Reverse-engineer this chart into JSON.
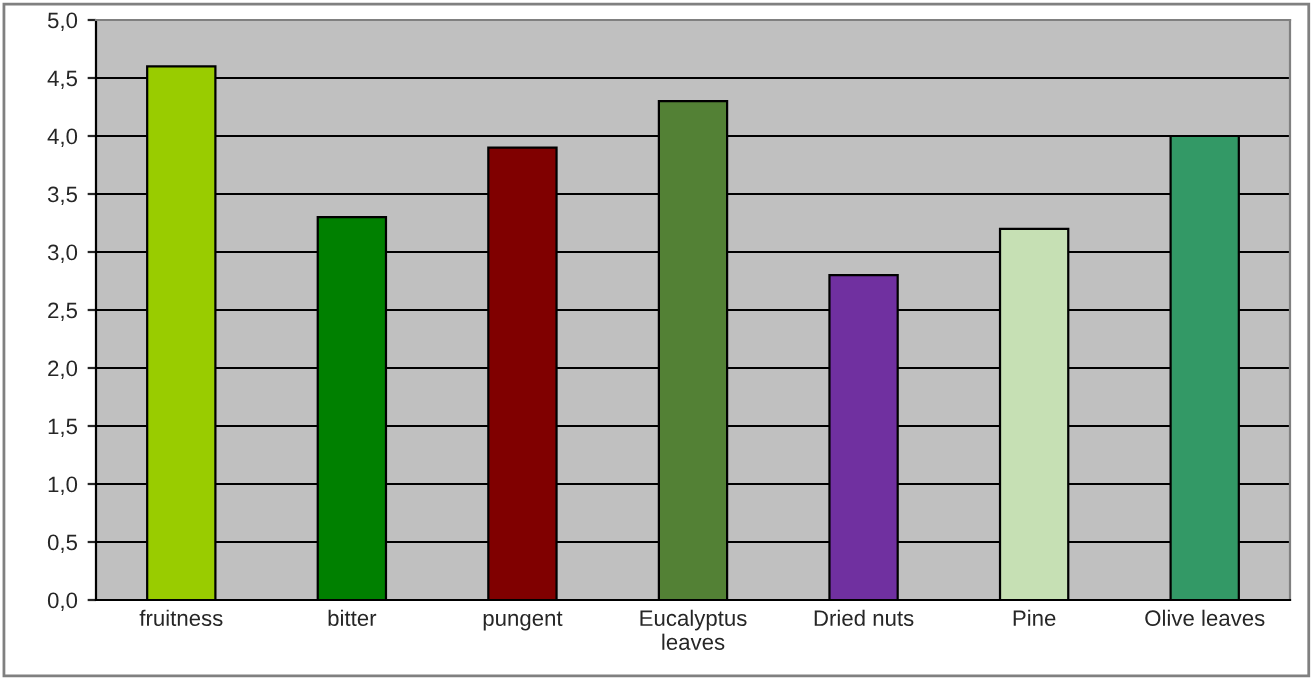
{
  "chart_data": {
    "type": "bar",
    "categories": [
      "fruitness",
      "bitter",
      "pungent",
      "Eucalyptus\nleaves",
      "Dried nuts",
      "Pine",
      "Olive leaves"
    ],
    "values": [
      4.6,
      3.3,
      3.9,
      4.3,
      2.8,
      3.2,
      4.0
    ],
    "colors": [
      "#99cc00",
      "#008000",
      "#800000",
      "#538135",
      "#7030a0",
      "#c6e0b4",
      "#339966"
    ],
    "ylim": [
      0,
      5
    ],
    "yticks": [
      {
        "value": 0,
        "label": "0,0"
      },
      {
        "value": 0.5,
        "label": "0,5"
      },
      {
        "value": 1,
        "label": "1,0"
      },
      {
        "value": 1.5,
        "label": "1,5"
      },
      {
        "value": 2,
        "label": "2,0"
      },
      {
        "value": 2.5,
        "label": "2,5"
      },
      {
        "value": 3,
        "label": "3,0"
      },
      {
        "value": 3.5,
        "label": "3,5"
      },
      {
        "value": 4,
        "label": "4,0"
      },
      {
        "value": 4.5,
        "label": "4,5"
      },
      {
        "value": 5,
        "label": "5,0"
      }
    ],
    "grid": "y",
    "legend": false
  }
}
